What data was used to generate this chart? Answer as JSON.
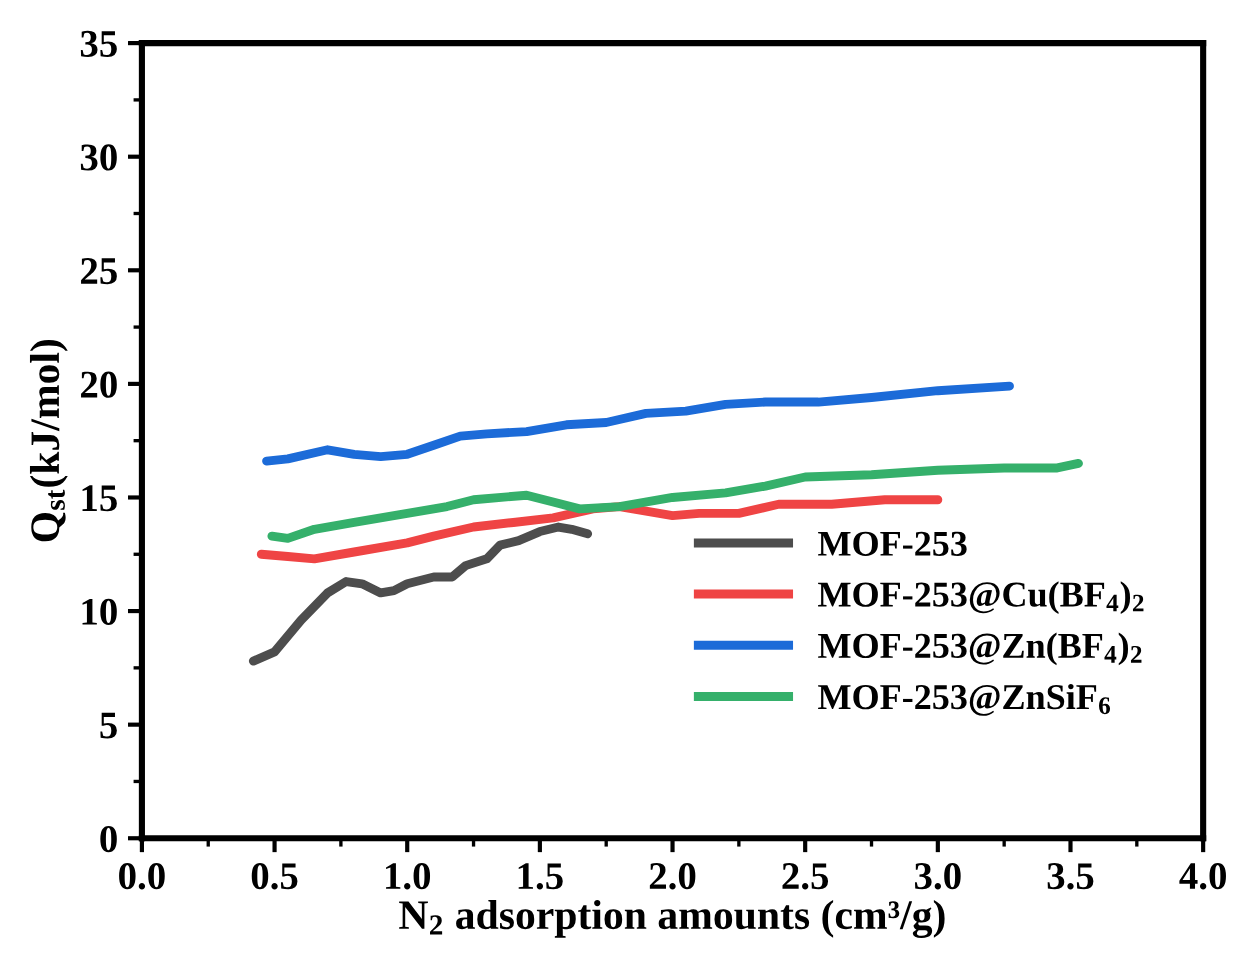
{
  "chart_data": {
    "type": "line",
    "xlabel": "N$_{2}$ adsorption amounts (cm³/g)",
    "ylabel": "Q$_{st}$(kJ/mol)",
    "xlim": [
      0,
      4.0
    ],
    "xticks": [
      {
        "value": 0,
        "label": "0.0"
      },
      0.5,
      {
        "value": 1,
        "label": "1.0"
      },
      1.5,
      {
        "value": 2,
        "label": "2.0"
      },
      2.5,
      {
        "value": 3,
        "label": "3.0"
      },
      3.5,
      {
        "value": 4,
        "label": "4.0"
      }
    ],
    "ylim": [
      0,
      35
    ],
    "yticks": [
      0,
      5,
      10,
      15,
      20,
      25,
      30,
      35
    ],
    "grid": false,
    "legend": "bottom right",
    "marker": "none",
    "line_style": "solid",
    "series": [
      {
        "name": "MOF-253",
        "color": "#4d4d4d",
        "x": [
          0.42,
          0.5,
          0.6,
          0.7,
          0.77,
          0.83,
          0.9,
          0.95,
          1.0,
          1.1,
          1.17,
          1.22,
          1.3,
          1.35,
          1.42,
          1.5,
          1.57,
          1.62,
          1.68
        ],
        "values": [
          7.8,
          8.2,
          9.6,
          10.8,
          11.3,
          11.2,
          10.8,
          10.9,
          11.2,
          11.5,
          11.5,
          12.0,
          12.3,
          12.9,
          13.1,
          13.5,
          13.7,
          13.6,
          13.4
        ]
      },
      {
        "name": "MOF-253@Cu(BF$_{4}$)$_{2}$",
        "color": "#ef4444",
        "x": [
          0.45,
          0.55,
          0.65,
          0.8,
          1.0,
          1.1,
          1.25,
          1.4,
          1.55,
          1.7,
          1.8,
          1.9,
          2.0,
          2.1,
          2.25,
          2.4,
          2.6,
          2.8,
          3.0
        ],
        "values": [
          12.5,
          12.4,
          12.3,
          12.6,
          13.0,
          13.3,
          13.7,
          13.9,
          14.1,
          14.5,
          14.6,
          14.4,
          14.2,
          14.3,
          14.3,
          14.7,
          14.7,
          14.9,
          14.9
        ]
      },
      {
        "name": "MOF-253@Zn(BF$_{4}$)$_{2}$",
        "color": "#1c6bd8",
        "x": [
          0.47,
          0.55,
          0.7,
          0.8,
          0.9,
          1.0,
          1.1,
          1.2,
          1.3,
          1.45,
          1.6,
          1.75,
          1.9,
          2.05,
          2.2,
          2.35,
          2.55,
          2.75,
          3.0,
          3.27
        ],
        "values": [
          16.6,
          16.7,
          17.1,
          16.9,
          16.8,
          16.9,
          17.3,
          17.7,
          17.8,
          17.9,
          18.2,
          18.3,
          18.7,
          18.8,
          19.1,
          19.2,
          19.2,
          19.4,
          19.7,
          19.9
        ]
      },
      {
        "name": "MOF-253@ZnSiF$_{6}$",
        "color": "#35b06b",
        "x": [
          0.49,
          0.55,
          0.65,
          0.8,
          1.0,
          1.15,
          1.25,
          1.45,
          1.55,
          1.65,
          1.8,
          2.0,
          2.2,
          2.35,
          2.5,
          2.75,
          3.0,
          3.25,
          3.45,
          3.53
        ],
        "values": [
          13.3,
          13.2,
          13.6,
          13.9,
          14.3,
          14.6,
          14.9,
          15.1,
          14.8,
          14.5,
          14.6,
          15.0,
          15.2,
          15.5,
          15.9,
          16.0,
          16.2,
          16.3,
          16.3,
          16.5
        ]
      }
    ]
  }
}
